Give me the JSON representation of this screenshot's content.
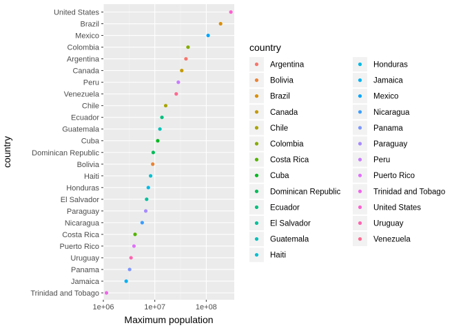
{
  "chart_data": {
    "type": "scatter",
    "title": "",
    "xlabel": "Maximum population",
    "ylabel": "country",
    "x_scale": "log10",
    "xlim": [
      1000000,
      350000000
    ],
    "x_ticks": [
      {
        "value": 1000000,
        "label": "1e+06"
      },
      {
        "value": 10000000,
        "label": "1e+07"
      },
      {
        "value": 100000000,
        "label": "1e+08"
      }
    ],
    "grid": true,
    "legend_title": "country",
    "legend_position": "right",
    "points": [
      {
        "country": "Trinidad and Tobago",
        "value": 1150000
      },
      {
        "country": "Jamaica",
        "value": 2780000
      },
      {
        "country": "Panama",
        "value": 3240000
      },
      {
        "country": "Uruguay",
        "value": 3450000
      },
      {
        "country": "Puerto Rico",
        "value": 3940000
      },
      {
        "country": "Costa Rica",
        "value": 4130000
      },
      {
        "country": "Nicaragua",
        "value": 5680000
      },
      {
        "country": "Paraguay",
        "value": 6670000
      },
      {
        "country": "El Salvador",
        "value": 6940000
      },
      {
        "country": "Honduras",
        "value": 7480000
      },
      {
        "country": "Haiti",
        "value": 8290000
      },
      {
        "country": "Bolivia",
        "value": 9120000
      },
      {
        "country": "Dominican Republic",
        "value": 9320000
      },
      {
        "country": "Cuba",
        "value": 11400000
      },
      {
        "country": "Guatemala",
        "value": 12570000
      },
      {
        "country": "Ecuador",
        "value": 13760000
      },
      {
        "country": "Chile",
        "value": 16280000
      },
      {
        "country": "Venezuela",
        "value": 26100000
      },
      {
        "country": "Peru",
        "value": 28670000
      },
      {
        "country": "Canada",
        "value": 33390000
      },
      {
        "country": "Argentina",
        "value": 40300000
      },
      {
        "country": "Colombia",
        "value": 44230000
      },
      {
        "country": "Mexico",
        "value": 108700000
      },
      {
        "country": "Brazil",
        "value": 190000000
      },
      {
        "country": "United States",
        "value": 301100000
      }
    ],
    "legend": [
      {
        "name": "Argentina",
        "color": "#F8766D"
      },
      {
        "name": "Bolivia",
        "color": "#EB8335"
      },
      {
        "name": "Brazil",
        "color": "#DA8F00"
      },
      {
        "name": "Canada",
        "color": "#C49A00"
      },
      {
        "name": "Chile",
        "color": "#A9A400"
      },
      {
        "name": "Colombia",
        "color": "#86AC00"
      },
      {
        "name": "Costa Rica",
        "color": "#53B400"
      },
      {
        "name": "Cuba",
        "color": "#00B81F"
      },
      {
        "name": "Dominican Republic",
        "color": "#00BC59"
      },
      {
        "name": "Ecuador",
        "color": "#00BF7D"
      },
      {
        "name": "El Salvador",
        "color": "#00C19C"
      },
      {
        "name": "Guatemala",
        "color": "#00C1B8"
      },
      {
        "name": "Haiti",
        "color": "#00BFD1"
      },
      {
        "name": "Honduras",
        "color": "#00BAE6"
      },
      {
        "name": "Jamaica",
        "color": "#00B2F3"
      },
      {
        "name": "Mexico",
        "color": "#00A5FF"
      },
      {
        "name": "Nicaragua",
        "color": "#3C9DFF"
      },
      {
        "name": "Panama",
        "color": "#7D96FF"
      },
      {
        "name": "Paraguay",
        "color": "#A78BFF"
      },
      {
        "name": "Peru",
        "color": "#C77CFF"
      },
      {
        "name": "Puerto Rico",
        "color": "#E070FC"
      },
      {
        "name": "Trinidad and Tobago",
        "color": "#F066EA"
      },
      {
        "name": "United States",
        "color": "#FD61D1"
      },
      {
        "name": "Uruguay",
        "color": "#FF64B0"
      },
      {
        "name": "Venezuela",
        "color": "#FF6B91"
      }
    ],
    "colors": {
      "panel_background": "#EBEBEB",
      "grid_major": "#FFFFFF",
      "grid_minor": "#F5F5F5",
      "legend_key_background": "#F2F2F2"
    }
  }
}
